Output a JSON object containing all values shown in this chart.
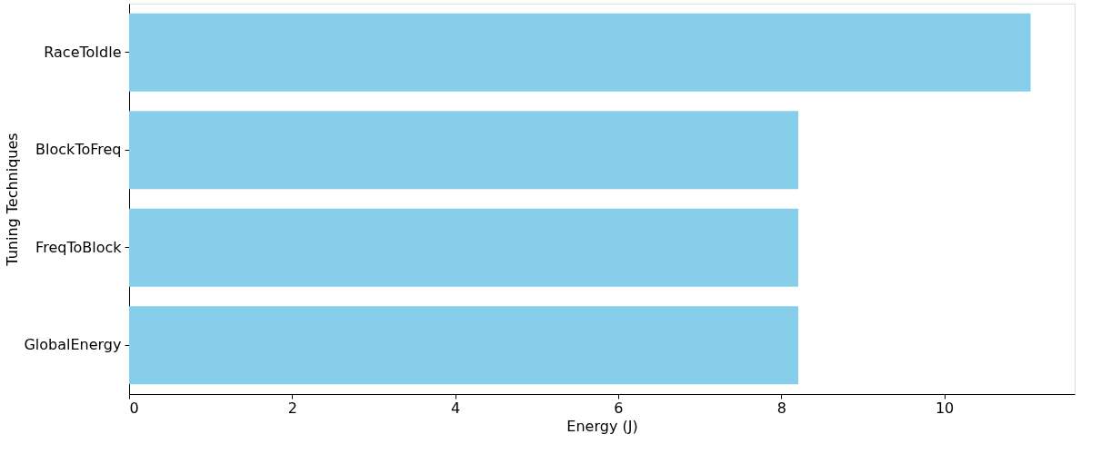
{
  "chart_data": {
    "type": "bar",
    "orientation": "horizontal",
    "xlabel": "Energy (J)",
    "ylabel": "Tuning Techniques",
    "categories": [
      "RaceToIdle",
      "BlockToFreq",
      "FreqToBlock",
      "GlobalEnergy"
    ],
    "values": [
      11.06,
      8.21,
      8.21,
      8.21
    ],
    "color": "#87ceeb",
    "xlim": [
      0,
      11.6
    ],
    "xticks": [
      0,
      2,
      4,
      6,
      8,
      10
    ],
    "grid": false
  }
}
